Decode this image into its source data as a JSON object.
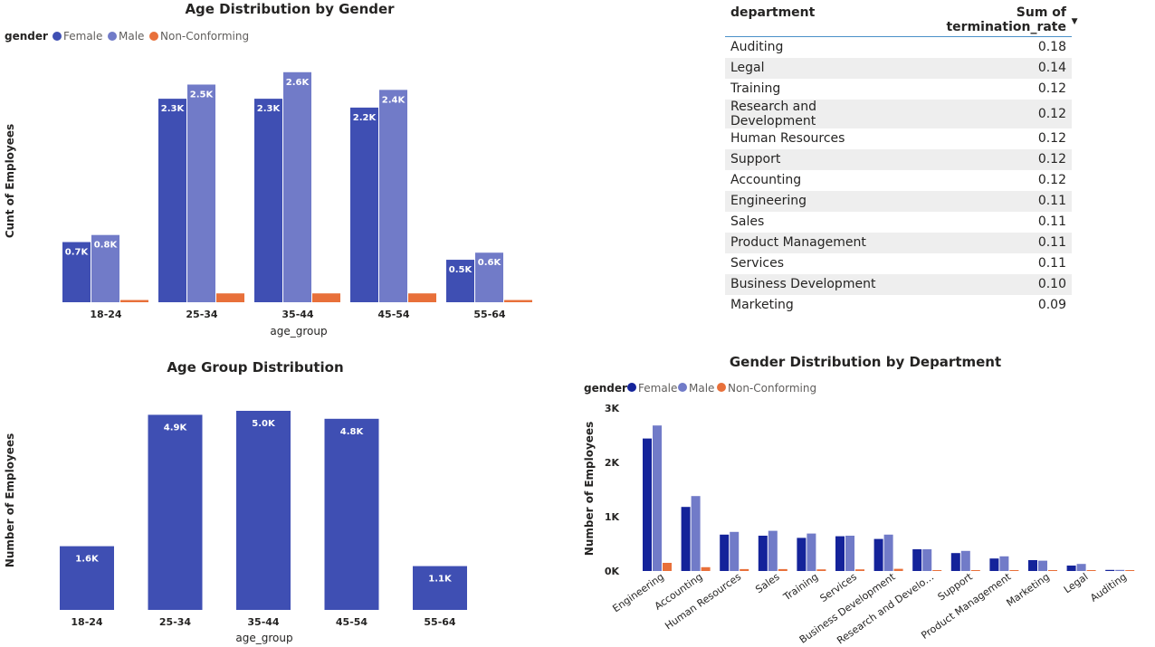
{
  "colors": {
    "female": "#3f4fb3",
    "male": "#717bc8",
    "nonconforming": "#e8703a",
    "dept_female": "#14239a",
    "dept_male": "#717bc8",
    "dept_nonconforming": "#e8703a",
    "bar": "#3f4fb3"
  },
  "legend": {
    "title": "gender",
    "items": [
      "Female",
      "Male",
      "Non-Conforming"
    ]
  },
  "table": {
    "columns": [
      "department",
      "Sum of termination_rate"
    ],
    "sort_icon": "sort-descending-icon",
    "rows": [
      [
        "Auditing",
        "0.18"
      ],
      [
        "Legal",
        "0.14"
      ],
      [
        "Training",
        "0.12"
      ],
      [
        "Research and Development",
        "0.12"
      ],
      [
        "Human Resources",
        "0.12"
      ],
      [
        "Support",
        "0.12"
      ],
      [
        "Accounting",
        "0.12"
      ],
      [
        "Engineering",
        "0.11"
      ],
      [
        "Sales",
        "0.11"
      ],
      [
        "Product Management",
        "0.11"
      ],
      [
        "Services",
        "0.11"
      ],
      [
        "Business Development",
        "0.10"
      ],
      [
        "Marketing",
        "0.09"
      ]
    ]
  },
  "chart_data": [
    {
      "type": "bar",
      "title": "Age Distribution by Gender",
      "xlabel": "age_group",
      "ylabel": "Cunt of Employees",
      "categories": [
        "18-24",
        "25-34",
        "35-44",
        "45-54",
        "55-64"
      ],
      "series": [
        {
          "name": "Female",
          "values": [
            680,
            2300,
            2300,
            2200,
            480
          ],
          "labels": [
            "0.7K",
            "2.3K",
            "2.3K",
            "2.2K",
            "0.5K"
          ]
        },
        {
          "name": "Male",
          "values": [
            760,
            2460,
            2600,
            2400,
            560
          ],
          "labels": [
            "0.8K",
            "2.5K",
            "2.6K",
            "2.4K",
            "0.6K"
          ]
        },
        {
          "name": "Non-Conforming",
          "values": [
            25,
            100,
            100,
            100,
            25
          ],
          "labels": [
            "",
            "",
            "",
            "",
            ""
          ]
        }
      ],
      "ylim": [
        0,
        2700
      ],
      "legend_position": "top-left",
      "grid": false
    },
    {
      "type": "bar",
      "title": "Age Group Distribution",
      "xlabel": "age_group",
      "ylabel": "Number of Employees",
      "categories": [
        "18-24",
        "25-34",
        "35-44",
        "45-54",
        "55-64"
      ],
      "values": [
        1600,
        4900,
        5000,
        4800,
        1100
      ],
      "labels": [
        "1.6K",
        "4.9K",
        "5.0K",
        "4.8K",
        "1.1K"
      ],
      "ylim": [
        0,
        5000
      ],
      "grid": false
    },
    {
      "type": "bar",
      "title": "Gender Distribution by Department",
      "xlabel": "",
      "ylabel": "Number of Employees",
      "categories": [
        "Engineering",
        "Accounting",
        "Human Resources",
        "Sales",
        "Training",
        "Services",
        "Business Development",
        "Research and Develo…",
        "Support",
        "Product Management",
        "Marketing",
        "Legal",
        "Auditing"
      ],
      "series": [
        {
          "name": "Female",
          "values": [
            2440,
            1180,
            670,
            650,
            610,
            640,
            590,
            400,
            330,
            230,
            200,
            100,
            20
          ]
        },
        {
          "name": "Male",
          "values": [
            2680,
            1380,
            720,
            740,
            690,
            650,
            670,
            400,
            370,
            270,
            190,
            130,
            20
          ]
        },
        {
          "name": "Non-Conforming",
          "values": [
            150,
            70,
            35,
            35,
            30,
            30,
            40,
            15,
            15,
            10,
            5,
            5,
            2
          ]
        }
      ],
      "yticks": [
        0,
        1000,
        2000,
        3000
      ],
      "ytick_labels": [
        "0K",
        "1K",
        "2K",
        "3K"
      ],
      "ylim": [
        0,
        3000
      ],
      "legend_position": "top-left",
      "grid": false
    }
  ]
}
